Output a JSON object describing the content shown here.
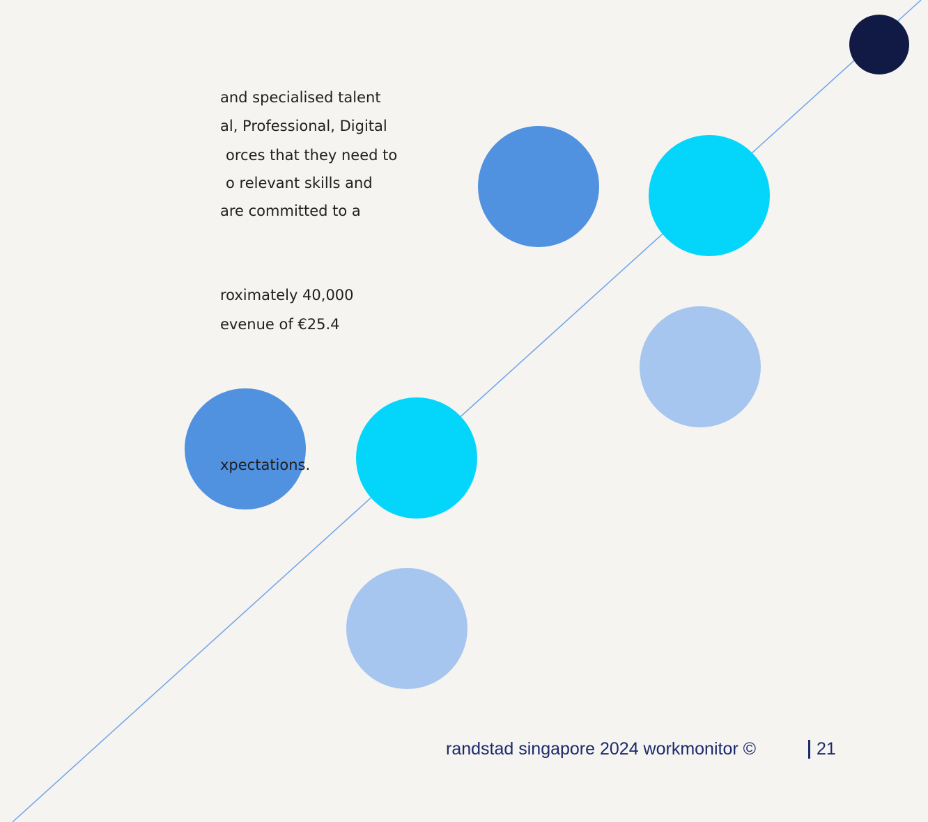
{
  "body": {
    "paragraph_1": [
      "and specialised talent",
      "al, Professional, Digital",
      "orces that they need to",
      "o relevant skills and",
      "are committed to a"
    ],
    "paragraph_2": [
      "roximately 40,000",
      "evenue of €25.4"
    ],
    "paragraph_3": [
      "xpectations."
    ]
  },
  "footer": {
    "text": "randstad singapore 2024 workmonitor ©",
    "page_number": "21"
  }
}
